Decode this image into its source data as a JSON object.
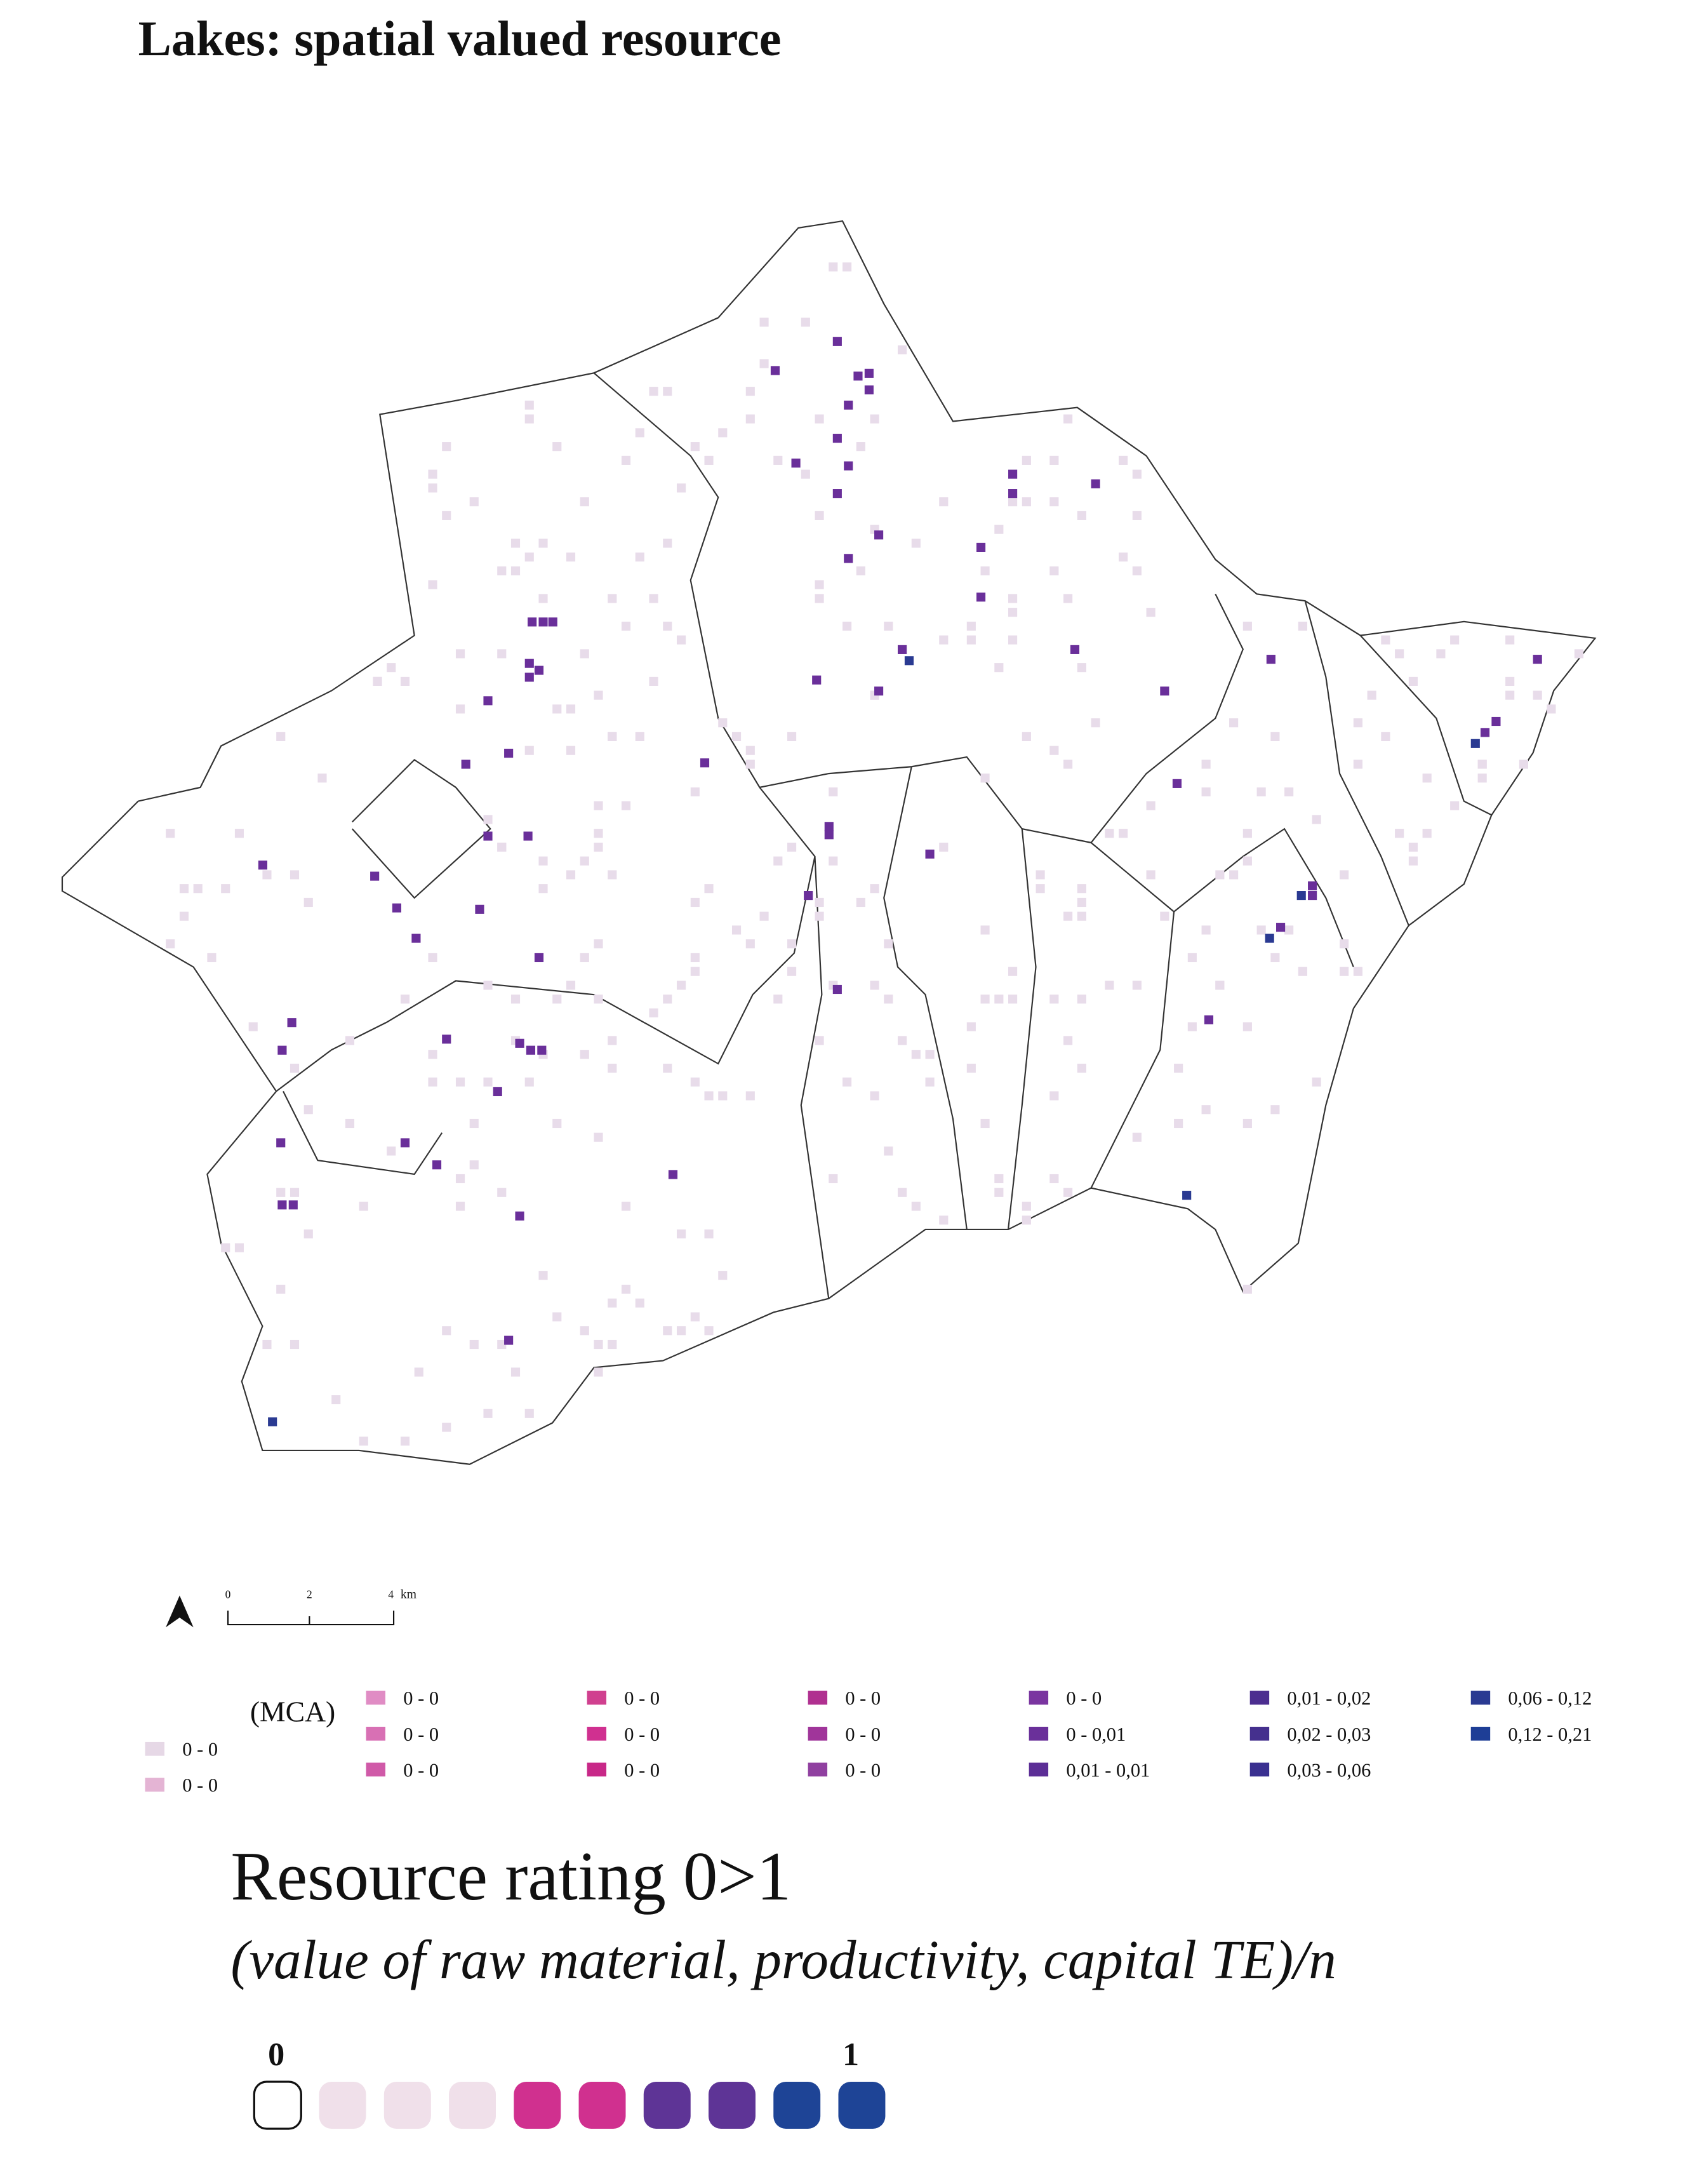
{
  "title": "Lakes: spatial valued resource",
  "scale_bar": {
    "ticks": [
      "0",
      "2",
      "4"
    ],
    "unit": "km"
  },
  "legend": {
    "label": "(MCA)",
    "columns": [
      [
        {
          "label": "0 - 0",
          "color": "#e6d8e6"
        },
        {
          "label": "0 - 0",
          "color": "#e4b4d4"
        }
      ],
      [
        {
          "label": "0 - 0",
          "color": "#e08cc4"
        },
        {
          "label": "0 - 0",
          "color": "#d870b4"
        },
        {
          "label": "0 - 0",
          "color": "#d05aa8"
        }
      ],
      [
        {
          "label": "0 - 0",
          "color": "#d0408f"
        },
        {
          "label": "0 - 0",
          "color": "#d03090"
        },
        {
          "label": "0 - 0",
          "color": "#c82888"
        }
      ],
      [
        {
          "label": "0 - 0",
          "color": "#b03090"
        },
        {
          "label": "0 - 0",
          "color": "#a0359a"
        },
        {
          "label": "0 - 0",
          "color": "#9040a0"
        }
      ],
      [
        {
          "label": "0 - 0",
          "color": "#7a35a0"
        },
        {
          "label": "0 - 0,01",
          "color": "#6a309a"
        },
        {
          "label": "0,01 - 0,01",
          "color": "#5c2e96"
        }
      ],
      [
        {
          "label": "0,01 - 0,02",
          "color": "#4c2e90"
        },
        {
          "label": "0,02 - 0,03",
          "color": "#45308e"
        },
        {
          "label": "0,03 - 0,06",
          "color": "#3a3090"
        }
      ],
      [
        {
          "label": "0,06 - 0,12",
          "color": "#2a3a92"
        },
        {
          "label": "0,12 - 0,21",
          "color": "#1e3e96"
        }
      ]
    ]
  },
  "rating": {
    "title": "Resource rating 0>1",
    "subtitle": "(value of raw material, productivity, capital TE)/n",
    "min_label": "0",
    "max_label": "1",
    "swatches": [
      "#ffffff",
      "#f0e0ea",
      "#f0e0ea",
      "#f0e0ea",
      "#d0308f",
      "#d0308f",
      "#5e3496",
      "#5e3496",
      "#1e4496",
      "#1e4496"
    ]
  }
}
